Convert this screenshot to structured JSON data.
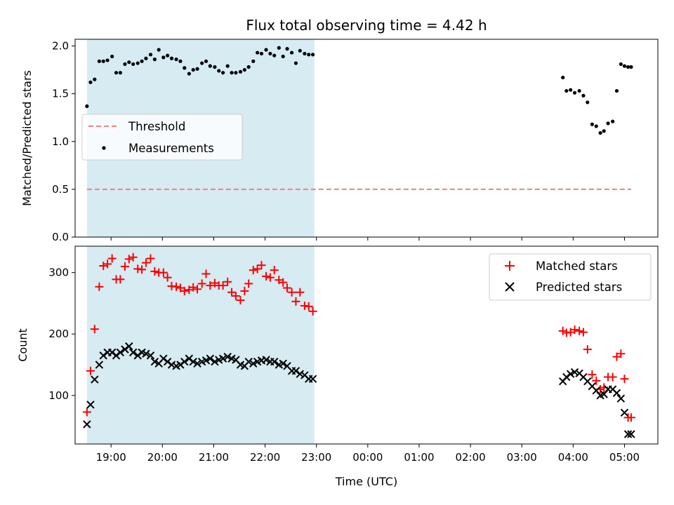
{
  "chart_data": {
    "title": "Flux total observing time = 4.42 h",
    "xlabel": "Time (UTC)",
    "x_unit": "hours UTC (18.5 = 18:30, 29.0 = 05:00 next day)",
    "xlim": [
      18.3,
      29.65
    ],
    "xticks": [
      19,
      20,
      21,
      22,
      23,
      24,
      25,
      26,
      27,
      28,
      29
    ],
    "xtick_labels": [
      "19:00",
      "20:00",
      "21:00",
      "22:00",
      "23:00",
      "00:00",
      "01:00",
      "02:00",
      "03:00",
      "04:00",
      "05:00"
    ],
    "shaded_span": {
      "x0": 18.53,
      "x1": 22.96,
      "color": "#add8e6"
    },
    "panels": [
      {
        "type": "scatter",
        "ylabel": "Matched/Predicted stars",
        "ylim": [
          0.0,
          2.07
        ],
        "yticks": [
          0.0,
          0.5,
          1.0,
          1.5,
          2.0
        ],
        "ytick_labels": [
          "0.0",
          "0.5",
          "1.0",
          "1.5",
          "2.0"
        ],
        "legend": {
          "position": "center-left",
          "entries": [
            "Threshold",
            "Measurements"
          ]
        },
        "series": [
          {
            "name": "Threshold",
            "kind": "hline",
            "color": "#f08080",
            "y": 0.5,
            "x_range": [
              18.53,
              29.13
            ]
          },
          {
            "name": "Measurements",
            "kind": "points",
            "color": "#000000",
            "x": [
              18.53,
              18.6,
              18.68,
              18.77,
              18.85,
              18.93,
              19.02,
              19.1,
              19.18,
              19.27,
              19.35,
              19.43,
              19.52,
              19.6,
              19.68,
              19.77,
              19.85,
              19.93,
              20.02,
              20.1,
              20.18,
              20.27,
              20.35,
              20.43,
              20.52,
              20.6,
              20.68,
              20.77,
              20.85,
              20.93,
              21.02,
              21.1,
              21.18,
              21.27,
              21.35,
              21.43,
              21.52,
              21.6,
              21.68,
              21.77,
              21.85,
              21.93,
              22.02,
              22.1,
              22.18,
              22.27,
              22.35,
              22.43,
              22.52,
              22.6,
              22.68,
              22.77,
              22.85,
              22.93,
              27.8,
              27.87,
              27.95,
              28.03,
              28.12,
              28.2,
              28.28,
              28.37,
              28.45,
              28.53,
              28.6,
              28.68,
              28.77,
              28.85,
              28.93,
              29.0,
              29.07,
              29.13
            ],
            "y": [
              1.37,
              1.62,
              1.65,
              1.84,
              1.84,
              1.85,
              1.89,
              1.72,
              1.72,
              1.81,
              1.83,
              1.81,
              1.82,
              1.84,
              1.87,
              1.91,
              1.86,
              1.96,
              1.88,
              1.9,
              1.87,
              1.86,
              1.84,
              1.77,
              1.71,
              1.75,
              1.76,
              1.82,
              1.84,
              1.79,
              1.78,
              1.74,
              1.72,
              1.79,
              1.72,
              1.72,
              1.73,
              1.75,
              1.78,
              1.84,
              1.93,
              1.92,
              1.96,
              1.92,
              1.9,
              1.98,
              1.89,
              1.97,
              1.93,
              1.82,
              1.95,
              1.92,
              1.91,
              1.91,
              1.67,
              1.53,
              1.54,
              1.51,
              1.53,
              1.48,
              1.41,
              1.18,
              1.16,
              1.09,
              1.11,
              1.19,
              1.21,
              1.53,
              1.81,
              1.79,
              1.78,
              1.78
            ]
          }
        ]
      },
      {
        "type": "scatter",
        "ylabel": "Count",
        "ylim": [
          21,
          343
        ],
        "yticks": [
          100,
          200,
          300
        ],
        "ytick_labels": [
          "100",
          "200",
          "300"
        ],
        "legend": {
          "position": "top-right",
          "entries": [
            "Matched stars",
            "Predicted stars"
          ]
        },
        "series": [
          {
            "name": "Matched stars",
            "marker": "plus",
            "color": "#ff0000",
            "x": [
              18.53,
              18.6,
              18.68,
              18.77,
              18.85,
              18.93,
              19.02,
              19.1,
              19.18,
              19.27,
              19.35,
              19.43,
              19.52,
              19.6,
              19.68,
              19.77,
              19.85,
              19.93,
              20.02,
              20.1,
              20.18,
              20.27,
              20.35,
              20.43,
              20.52,
              20.6,
              20.68,
              20.77,
              20.85,
              20.93,
              21.02,
              21.1,
              21.18,
              21.27,
              21.35,
              21.43,
              21.52,
              21.6,
              21.68,
              21.77,
              21.85,
              21.93,
              22.02,
              22.1,
              22.18,
              22.27,
              22.35,
              22.43,
              22.52,
              22.6,
              22.68,
              22.77,
              22.85,
              22.93,
              27.8,
              27.87,
              27.95,
              28.03,
              28.12,
              28.2,
              28.28,
              28.37,
              28.45,
              28.53,
              28.6,
              28.68,
              28.77,
              28.85,
              28.93,
              29.0,
              29.07,
              29.13
            ],
            "y": [
              73,
              140,
              208,
              277,
              311,
              314,
              323,
              289,
              289,
              310,
              322,
              325,
              306,
              305,
              316,
              323,
              302,
              300,
              300,
              292,
              278,
              277,
              275,
              270,
              272,
              276,
              273,
              282,
              298,
              279,
              283,
              279,
              279,
              285,
              268,
              262,
              255,
              270,
              282,
              304,
              306,
              312,
              294,
              292,
              304,
              288,
              284,
              275,
              268,
              253,
              268,
              246,
              245,
              237,
              205,
              202,
              203,
              207,
              205,
              203,
              175,
              134,
              124,
              110,
              113,
              130,
              130,
              163,
              168,
              127,
              64,
              64
            ]
          },
          {
            "name": "Predicted stars",
            "marker": "x",
            "color": "#000000",
            "x": [
              18.53,
              18.6,
              18.68,
              18.77,
              18.85,
              18.93,
              19.02,
              19.1,
              19.18,
              19.27,
              19.35,
              19.43,
              19.52,
              19.6,
              19.68,
              19.77,
              19.85,
              19.93,
              20.02,
              20.1,
              20.18,
              20.27,
              20.35,
              20.43,
              20.52,
              20.6,
              20.68,
              20.77,
              20.85,
              20.93,
              21.02,
              21.1,
              21.18,
              21.27,
              21.35,
              21.43,
              21.52,
              21.6,
              21.68,
              21.77,
              21.85,
              21.93,
              22.02,
              22.1,
              22.18,
              22.27,
              22.35,
              22.43,
              22.52,
              22.6,
              22.68,
              22.77,
              22.85,
              22.93,
              27.8,
              27.87,
              27.95,
              28.03,
              28.12,
              28.2,
              28.28,
              28.37,
              28.45,
              28.53,
              28.6,
              28.68,
              28.77,
              28.85,
              28.93,
              29.0,
              29.07,
              29.13
            ],
            "y": [
              53,
              85,
              126,
              150,
              165,
              170,
              170,
              165,
              170,
              175,
              180,
              170,
              165,
              170,
              168,
              165,
              155,
              152,
              160,
              155,
              150,
              148,
              150,
              155,
              160,
              155,
              152,
              155,
              157,
              160,
              155,
              158,
              160,
              163,
              160,
              158,
              150,
              148,
              155,
              152,
              155,
              157,
              158,
              155,
              155,
              150,
              152,
              148,
              140,
              140,
              135,
              133,
              127,
              127,
              123,
              130,
              135,
              138,
              136,
              130,
              123,
              115,
              108,
              100,
              102,
              110,
              110,
              104,
              95,
              72,
              37,
              37
            ]
          }
        ]
      }
    ]
  }
}
